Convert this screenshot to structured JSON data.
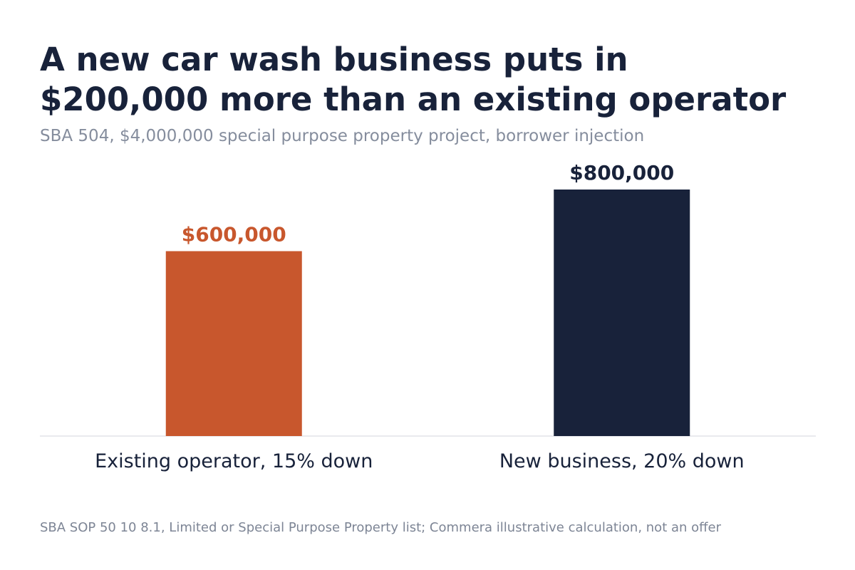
{
  "header": {
    "title_line1": "A new car wash business puts in",
    "title_line2": "$200,000 more than an existing operator",
    "subtitle": "SBA 504, $4,000,000 special purpose property project, borrower injection"
  },
  "footer": {
    "source": "SBA SOP 50 10 8.1, Limited or Special Purpose Property list; Commera illustrative calculation, not an offer"
  },
  "colors": {
    "existing": "#c8572d",
    "new": "#18223a",
    "axis": "#e2e4e8",
    "title": "#18223a",
    "subtitle": "#858d9d"
  },
  "chart_data": {
    "type": "bar",
    "title": "A new car wash business puts in $200,000 more than an existing operator",
    "subtitle": "SBA 504, $4,000,000 special purpose property project, borrower injection",
    "categories": [
      "Existing operator, 15% down",
      "New business, 20% down"
    ],
    "values": [
      600000,
      800000
    ],
    "value_labels": [
      "$600,000",
      "$800,000"
    ],
    "bar_colors": [
      "#c8572d",
      "#18223a"
    ],
    "xlabel": "",
    "ylabel": "",
    "ylim": [
      0,
      800000
    ],
    "grid": false,
    "legend": "none"
  }
}
